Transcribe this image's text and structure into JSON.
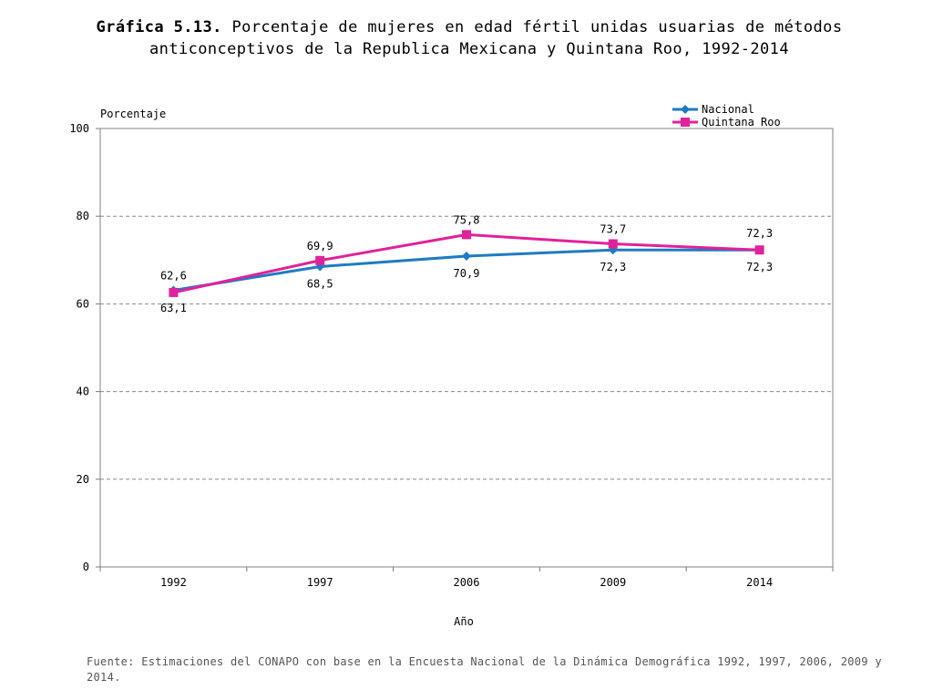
{
  "title_bold": "Gráfica 5.13.",
  "title_text": "Porcentaje de mujeres en edad fértil unidas usuarias de métodos anticonceptivos de la Republica Mexicana y Quintana Roo, 1992-2014",
  "source": "Fuente: Estimaciones del CONAPO con base en la Encuesta Nacional de la Dinámica Demográfica 1992, 1997, 2006, 2009 y 2014.",
  "chart_data": {
    "type": "line",
    "categories": [
      "1992",
      "1997",
      "2006",
      "2009",
      "2014"
    ],
    "ylabel": "Porcentaje",
    "xlabel": "Año",
    "ylim": [
      0,
      100
    ],
    "yticks": [
      "0",
      "20",
      "40",
      "60",
      "80",
      "100"
    ],
    "legend_position": "top-right",
    "series": [
      {
        "name": "Nacional",
        "color": "#1f7bc1",
        "marker": "diamond",
        "values": [
          63.1,
          68.5,
          70.9,
          72.3,
          72.3
        ],
        "labels": [
          "63,1",
          "68,5",
          "70,9",
          "72,3",
          "72,3"
        ]
      },
      {
        "name": "Quintana Roo",
        "color": "#e0229a",
        "marker": "square",
        "values": [
          62.6,
          69.9,
          75.8,
          73.7,
          72.3
        ],
        "labels": [
          "62,6",
          "69,9",
          "75,8",
          "73,7",
          "72,3"
        ]
      }
    ]
  }
}
